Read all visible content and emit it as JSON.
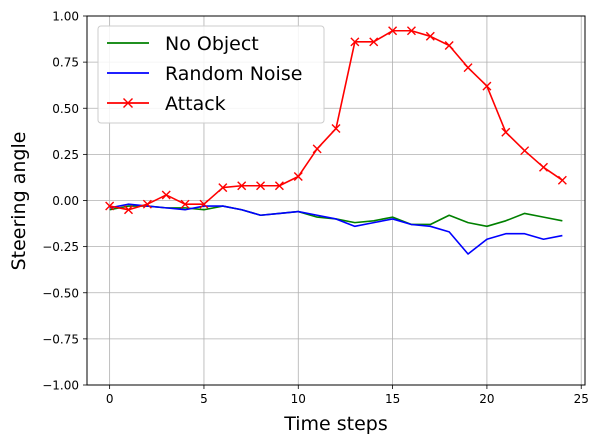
{
  "chart_data": {
    "type": "line",
    "title": "",
    "xlabel": "Time steps",
    "ylabel": "Steering angle",
    "xlim": [
      -1.2,
      25.2
    ],
    "ylim": [
      -1.0,
      1.0
    ],
    "xticks": [
      0,
      5,
      10,
      15,
      20,
      25
    ],
    "yticks": [
      -1.0,
      -0.75,
      -0.5,
      -0.25,
      0.0,
      0.25,
      0.5,
      0.75,
      1.0
    ],
    "xtick_labels": [
      "0",
      "5",
      "10",
      "15",
      "20",
      "25"
    ],
    "ytick_labels": [
      "−1.00",
      "−0.75",
      "−0.50",
      "−0.25",
      "0.00",
      "0.25",
      "0.50",
      "0.75",
      "1.00"
    ],
    "grid": true,
    "legend_position": "top-left",
    "x": [
      0,
      1,
      2,
      3,
      4,
      5,
      6,
      7,
      8,
      9,
      10,
      11,
      12,
      13,
      14,
      15,
      16,
      17,
      18,
      19,
      20,
      21,
      22,
      23,
      24
    ],
    "series": [
      {
        "name": "No Object",
        "color": "#008000",
        "marker": "none",
        "values": [
          -0.05,
          -0.03,
          -0.03,
          -0.04,
          -0.04,
          -0.05,
          -0.03,
          -0.05,
          -0.08,
          -0.07,
          -0.06,
          -0.09,
          -0.1,
          -0.12,
          -0.11,
          -0.09,
          -0.13,
          -0.13,
          -0.08,
          -0.12,
          -0.14,
          -0.11,
          -0.07,
          -0.09,
          -0.11
        ]
      },
      {
        "name": "Random Noise",
        "color": "#0000ff",
        "marker": "none",
        "values": [
          -0.04,
          -0.02,
          -0.03,
          -0.04,
          -0.05,
          -0.03,
          -0.03,
          -0.05,
          -0.08,
          -0.07,
          -0.06,
          -0.08,
          -0.1,
          -0.14,
          -0.12,
          -0.1,
          -0.13,
          -0.14,
          -0.17,
          -0.29,
          -0.21,
          -0.18,
          -0.18,
          -0.21,
          -0.19
        ]
      },
      {
        "name": "Attack",
        "color": "#ff0000",
        "marker": "x",
        "values": [
          -0.03,
          -0.05,
          -0.02,
          0.03,
          -0.02,
          -0.02,
          0.07,
          0.08,
          0.08,
          0.08,
          0.13,
          0.28,
          0.39,
          0.86,
          0.86,
          0.92,
          0.92,
          0.89,
          0.84,
          0.72,
          0.62,
          0.37,
          0.27,
          0.18,
          0.11
        ]
      }
    ]
  }
}
